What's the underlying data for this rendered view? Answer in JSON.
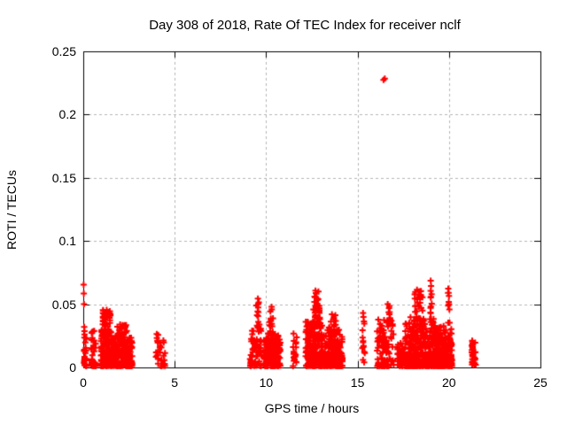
{
  "header": {
    "title": "Day 308 of 2018, Rate Of TEC Index for receiver nclf"
  },
  "chart_data": {
    "type": "scatter",
    "title": "Day 308 of 2018, Rate Of TEC Index for receiver nclf",
    "xlabel": "GPS time / hours",
    "ylabel": "ROTI / TECUs",
    "xlim": [
      0,
      25
    ],
    "ylim": [
      0,
      0.25
    ],
    "xticks": [
      0,
      5,
      10,
      15,
      20,
      25
    ],
    "yticks": [
      0,
      0.05,
      0.1,
      0.15,
      0.2,
      0.25
    ],
    "xtick_labels": [
      "0",
      "5",
      "10",
      "15",
      "20",
      "25"
    ],
    "ytick_labels": [
      "0",
      "0.05",
      "0.1",
      "0.15",
      "0.2",
      "0.25"
    ],
    "grid": true,
    "legend": "none",
    "marker": {
      "shape": "plus",
      "color": "#ff0000",
      "size": 7,
      "stroke": 2
    },
    "grid_color": "#b4b4b4",
    "axis_color": "#000000",
    "background_color": "#ffffff",
    "seed": 308,
    "series_name": "ROTI",
    "notable_points": [
      [
        0.02,
        0.0655
      ],
      [
        0.03,
        0.0585
      ],
      [
        0.04,
        0.05
      ],
      [
        0.05,
        0.032
      ],
      [
        1.28,
        0.0455
      ],
      [
        1.33,
        0.044
      ],
      [
        2.3,
        0.032
      ],
      [
        9.55,
        0.0545
      ],
      [
        9.6,
        0.0515
      ],
      [
        10.3,
        0.048
      ],
      [
        12.7,
        0.0607
      ],
      [
        12.75,
        0.0585
      ],
      [
        12.65,
        0.056
      ],
      [
        12.8,
        0.0545
      ],
      [
        13.6,
        0.042
      ],
      [
        13.7,
        0.0395
      ],
      [
        15.3,
        0.043
      ],
      [
        15.32,
        0.04
      ],
      [
        15.35,
        0.0365
      ],
      [
        15.3,
        0.02
      ],
      [
        15.33,
        0.017
      ],
      [
        15.3,
        0.006
      ],
      [
        15.36,
        0.004
      ],
      [
        16.42,
        0.2275
      ],
      [
        16.49,
        0.2285
      ],
      [
        16.65,
        0.05
      ],
      [
        16.72,
        0.047
      ],
      [
        18.25,
        0.0615
      ],
      [
        18.35,
        0.06
      ],
      [
        18.15,
        0.058
      ],
      [
        18.45,
        0.0575
      ],
      [
        19.0,
        0.0686
      ],
      [
        19.02,
        0.0644
      ],
      [
        19.05,
        0.058
      ],
      [
        19.96,
        0.0623
      ],
      [
        19.98,
        0.059
      ],
      [
        20.0,
        0.0565
      ]
    ],
    "clusters": [
      {
        "t0": 0.0,
        "t1": 0.18,
        "vmin": 0.001,
        "vmax": 0.03,
        "n": 26,
        "cols": 2,
        "bias": 2.0
      },
      {
        "t0": 0.42,
        "t1": 0.72,
        "vmin": 0.001,
        "vmax": 0.031,
        "n": 34,
        "cols": 3,
        "bias": 2.0
      },
      {
        "t0": 0.95,
        "t1": 1.55,
        "vmin": 0.001,
        "vmax": 0.03,
        "n": 130,
        "cols": 7,
        "bias": 1.9
      },
      {
        "t0": 1.05,
        "t1": 1.5,
        "vmin": 0.027,
        "vmax": 0.0455,
        "n": 42,
        "cols": 5,
        "bias": 1.0
      },
      {
        "t0": 1.5,
        "t1": 2.7,
        "vmin": 0.001,
        "vmax": 0.024,
        "n": 230,
        "cols": 12,
        "bias": 1.9
      },
      {
        "t0": 1.85,
        "t1": 2.4,
        "vmin": 0.022,
        "vmax": 0.034,
        "n": 28,
        "cols": 6,
        "bias": 1.2
      },
      {
        "t0": 3.95,
        "t1": 4.5,
        "vmin": 0.001,
        "vmax": 0.027,
        "n": 30,
        "cols": 3,
        "bias": 1.7
      },
      {
        "t0": 9.1,
        "t1": 9.75,
        "vmin": 0.001,
        "vmax": 0.032,
        "n": 60,
        "cols": 6,
        "bias": 1.8
      },
      {
        "t0": 9.45,
        "t1": 9.65,
        "vmin": 0.03,
        "vmax": 0.0545,
        "n": 13,
        "cols": 3,
        "bias": 1.0
      },
      {
        "t0": 9.85,
        "t1": 10.8,
        "vmin": 0.001,
        "vmax": 0.027,
        "n": 170,
        "cols": 10,
        "bias": 1.9
      },
      {
        "t0": 10.15,
        "t1": 10.4,
        "vmin": 0.025,
        "vmax": 0.048,
        "n": 16,
        "cols": 4,
        "bias": 1.2
      },
      {
        "t0": 11.45,
        "t1": 11.7,
        "vmin": 0.001,
        "vmax": 0.028,
        "n": 22,
        "cols": 2,
        "bias": 1.4
      },
      {
        "t0": 12.15,
        "t1": 13.1,
        "vmin": 0.001,
        "vmax": 0.036,
        "n": 210,
        "cols": 11,
        "bias": 1.9
      },
      {
        "t0": 12.55,
        "t1": 12.95,
        "vmin": 0.033,
        "vmax": 0.06,
        "n": 42,
        "cols": 6,
        "bias": 1.1
      },
      {
        "t0": 13.1,
        "t1": 14.2,
        "vmin": 0.001,
        "vmax": 0.03,
        "n": 180,
        "cols": 11,
        "bias": 1.9
      },
      {
        "t0": 13.4,
        "t1": 13.85,
        "vmin": 0.027,
        "vmax": 0.042,
        "n": 20,
        "cols": 5,
        "bias": 1.2
      },
      {
        "t0": 15.22,
        "t1": 15.45,
        "vmin": 0.002,
        "vmax": 0.044,
        "n": 9,
        "cols": 2,
        "bias": 1.0
      },
      {
        "t0": 16.05,
        "t1": 17.0,
        "vmin": 0.001,
        "vmax": 0.038,
        "n": 95,
        "cols": 8,
        "bias": 1.9
      },
      {
        "t0": 16.6,
        "t1": 16.85,
        "vmin": 0.035,
        "vmax": 0.05,
        "n": 8,
        "cols": 3,
        "bias": 1.0
      },
      {
        "t0": 17.15,
        "t1": 17.5,
        "vmin": 0.001,
        "vmax": 0.021,
        "n": 40,
        "cols": 3,
        "bias": 1.7
      },
      {
        "t0": 17.55,
        "t1": 19.2,
        "vmin": 0.001,
        "vmax": 0.04,
        "n": 330,
        "cols": 15,
        "bias": 2.1
      },
      {
        "t0": 18.1,
        "t1": 18.6,
        "vmin": 0.037,
        "vmax": 0.062,
        "n": 24,
        "cols": 5,
        "bias": 1.2
      },
      {
        "t0": 18.95,
        "t1": 19.1,
        "vmin": 0.04,
        "vmax": 0.0686,
        "n": 8,
        "cols": 2,
        "bias": 1.0
      },
      {
        "t0": 19.2,
        "t1": 20.18,
        "vmin": 0.001,
        "vmax": 0.033,
        "n": 260,
        "cols": 12,
        "bias": 2.1
      },
      {
        "t0": 19.9,
        "t1": 20.05,
        "vmin": 0.034,
        "vmax": 0.0623,
        "n": 7,
        "cols": 2,
        "bias": 1.0
      },
      {
        "t0": 21.22,
        "t1": 21.5,
        "vmin": 0.002,
        "vmax": 0.023,
        "n": 32,
        "cols": 2,
        "bias": 1.4
      }
    ]
  }
}
